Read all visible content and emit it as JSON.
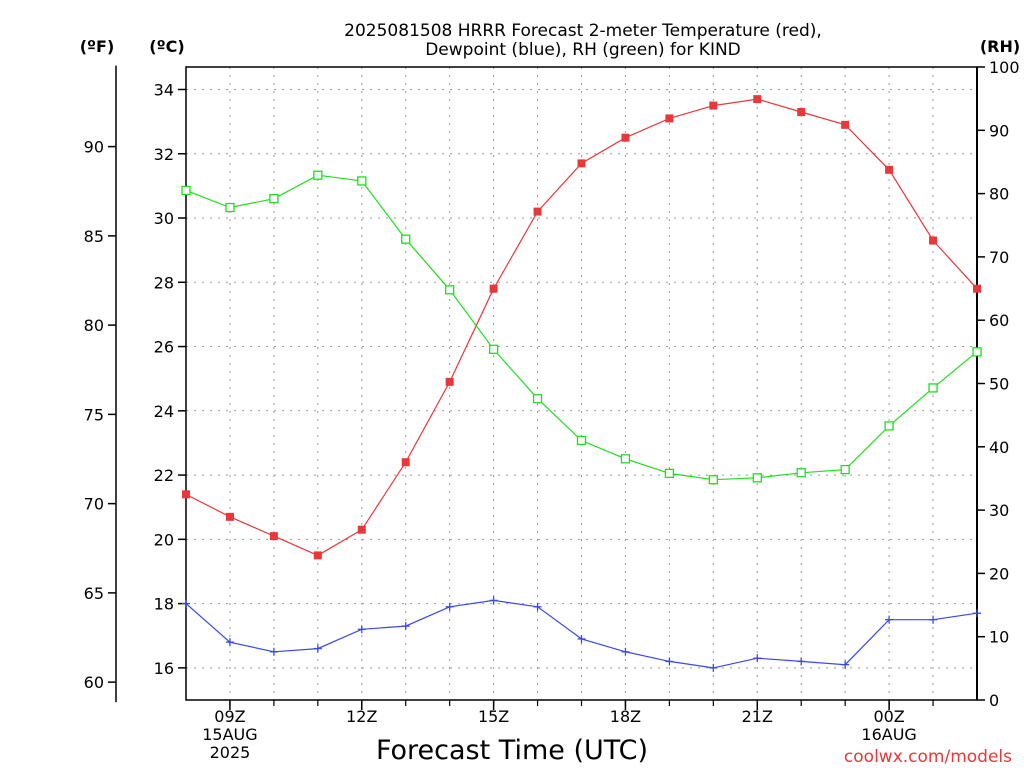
{
  "chart_data": {
    "type": "line",
    "title_line1": "2025081508 HRRR Forecast 2-meter Temperature (red),",
    "title_line2": "Dewpoint (blue), RH (green) for KIND",
    "xlabel": "Forecast Time (UTC)",
    "unit_left_f": "(ºF)",
    "unit_left_c": "(ºC)",
    "unit_right_rh": "(RH)",
    "credit": "coolwx.com/models",
    "x_hours": [
      0,
      1,
      2,
      3,
      4,
      5,
      6,
      7,
      8,
      9,
      10,
      11,
      12,
      13,
      14,
      15,
      16,
      17,
      18
    ],
    "x_ticks": [
      {
        "hour": 1,
        "lines": [
          "09Z",
          "15AUG",
          "2025"
        ]
      },
      {
        "hour": 4,
        "lines": [
          "12Z"
        ]
      },
      {
        "hour": 7,
        "lines": [
          "15Z"
        ]
      },
      {
        "hour": 10,
        "lines": [
          "18Z"
        ]
      },
      {
        "hour": 13,
        "lines": [
          "21Z"
        ]
      },
      {
        "hour": 16,
        "lines": [
          "00Z",
          "16AUG"
        ]
      }
    ],
    "celsius_axis": {
      "range": [
        15.0,
        34.7
      ],
      "ticks": [
        16,
        18,
        20,
        22,
        24,
        26,
        28,
        30,
        32,
        34
      ]
    },
    "fahrenheit_axis": {
      "ticks": [
        60,
        65,
        70,
        75,
        80,
        85,
        90
      ]
    },
    "rh_axis": {
      "range": [
        0,
        100
      ],
      "ticks": [
        0,
        10,
        20,
        30,
        40,
        50,
        60,
        70,
        80,
        90,
        100
      ]
    },
    "series": [
      {
        "name": "Temperature",
        "axis": "celsius",
        "color": "#e8383a",
        "marker": "filled-square",
        "values": [
          21.4,
          20.7,
          20.1,
          19.5,
          20.3,
          22.4,
          24.9,
          27.8,
          30.2,
          31.7,
          32.5,
          33.1,
          33.5,
          33.7,
          33.3,
          32.9,
          31.5,
          29.3,
          27.8
        ]
      },
      {
        "name": "Dewpoint",
        "axis": "celsius",
        "color": "#3a48e8",
        "marker": "plus",
        "values": [
          18.0,
          16.8,
          16.5,
          16.6,
          17.2,
          17.3,
          17.9,
          18.1,
          17.9,
          16.9,
          16.5,
          16.2,
          16.0,
          16.3,
          16.2,
          16.1,
          17.5,
          17.5,
          17.7
        ]
      },
      {
        "name": "RH",
        "axis": "rh",
        "color": "#20dd20",
        "marker": "open-square",
        "values": [
          80.5,
          77.8,
          79.2,
          82.9,
          82.0,
          72.8,
          64.8,
          55.4,
          47.6,
          41.0,
          38.1,
          35.8,
          34.8,
          35.1,
          35.9,
          36.4,
          43.3,
          49.3,
          55.0
        ]
      }
    ],
    "grid": true
  }
}
